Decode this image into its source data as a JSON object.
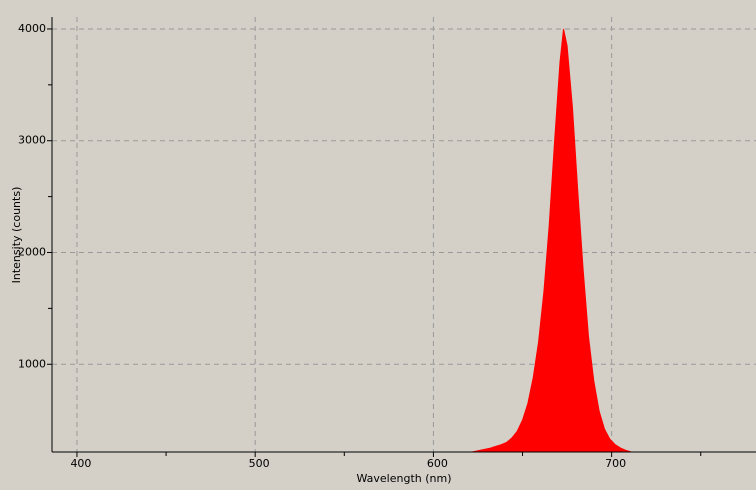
{
  "chart_data": {
    "type": "area",
    "x_label": "Wavelength (nm)",
    "y_label": "Intensity (counts)",
    "x": [
      620,
      623,
      626,
      629,
      632,
      635,
      638,
      641,
      644,
      647,
      650,
      653,
      656,
      659,
      662,
      665,
      668,
      671,
      673,
      675,
      678,
      681,
      684,
      687,
      690,
      693,
      696,
      699,
      702,
      705,
      708,
      711
    ],
    "values": [
      210,
      220,
      230,
      240,
      250,
      265,
      280,
      300,
      340,
      400,
      500,
      650,
      880,
      1200,
      1650,
      2250,
      3000,
      3700,
      4000,
      3850,
      3300,
      2550,
      1850,
      1250,
      850,
      580,
      420,
      330,
      280,
      250,
      230,
      215
    ],
    "color": "#ff0000",
    "xlim": [
      386,
      781
    ],
    "ylim": [
      215,
      4107
    ],
    "xticks": [
      400,
      500,
      600,
      700
    ],
    "xminorticks": [
      450,
      550,
      650,
      750
    ],
    "yticks": [
      1000,
      2000,
      3000,
      4000
    ],
    "yminorticks": [
      1500,
      2500,
      3500
    ],
    "grid": true
  }
}
